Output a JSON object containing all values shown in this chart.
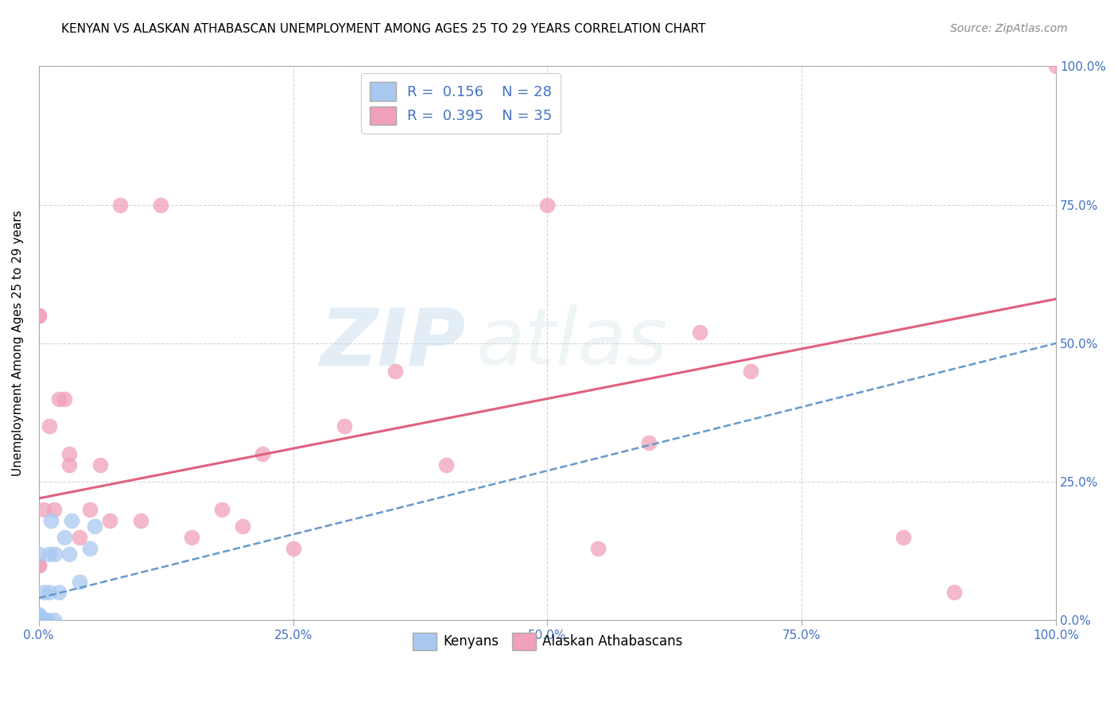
{
  "title": "KENYAN VS ALASKAN ATHABASCAN UNEMPLOYMENT AMONG AGES 25 TO 29 YEARS CORRELATION CHART",
  "source": "Source: ZipAtlas.com",
  "ylabel": "Unemployment Among Ages 25 to 29 years",
  "xlim": [
    0,
    1.0
  ],
  "ylim": [
    0,
    1.0
  ],
  "xtick_vals": [
    0,
    0.25,
    0.5,
    0.75,
    1.0
  ],
  "ytick_vals": [
    0,
    0.25,
    0.5,
    0.75,
    1.0
  ],
  "watermark_zip": "ZIP",
  "watermark_atlas": "atlas",
  "legend_r1": "R = 0.156",
  "legend_n1": "N = 28",
  "legend_r2": "R = 0.395",
  "legend_n2": "N = 35",
  "kenyan_color": "#a8c8f0",
  "athabascan_color": "#f0a0b8",
  "kenyan_x": [
    0.0,
    0.0,
    0.0,
    0.0,
    0.0,
    0.0,
    0.0,
    0.0,
    0.0,
    0.0,
    0.0,
    0.0,
    0.004,
    0.005,
    0.008,
    0.009,
    0.01,
    0.01,
    0.012,
    0.015,
    0.016,
    0.02,
    0.025,
    0.03,
    0.032,
    0.04,
    0.05,
    0.055
  ],
  "kenyan_y": [
    0.0,
    0.0,
    0.0,
    0.0,
    0.0,
    0.0,
    0.002,
    0.003,
    0.005,
    0.008,
    0.01,
    0.12,
    0.0,
    0.05,
    0.0,
    0.0,
    0.05,
    0.12,
    0.18,
    0.0,
    0.12,
    0.05,
    0.15,
    0.12,
    0.18,
    0.07,
    0.13,
    0.17
  ],
  "athabascan_x": [
    0.0,
    0.0,
    0.0,
    0.0,
    0.0,
    0.005,
    0.01,
    0.015,
    0.02,
    0.025,
    0.03,
    0.03,
    0.04,
    0.05,
    0.06,
    0.07,
    0.08,
    0.1,
    0.12,
    0.15,
    0.18,
    0.2,
    0.22,
    0.25,
    0.3,
    0.35,
    0.4,
    0.5,
    0.55,
    0.6,
    0.65,
    0.7,
    0.85,
    0.9,
    1.0
  ],
  "athabascan_y": [
    0.55,
    0.55,
    0.1,
    0.1,
    0.0,
    0.2,
    0.35,
    0.2,
    0.4,
    0.4,
    0.3,
    0.28,
    0.15,
    0.2,
    0.28,
    0.18,
    0.75,
    0.18,
    0.75,
    0.15,
    0.2,
    0.17,
    0.3,
    0.13,
    0.35,
    0.45,
    0.28,
    0.75,
    0.13,
    0.32,
    0.52,
    0.45,
    0.15,
    0.05,
    1.0
  ],
  "kenyan_trend_x": [
    0.0,
    1.0
  ],
  "kenyan_trend_y": [
    0.04,
    0.5
  ],
  "athabascan_trend_x": [
    0.0,
    1.0
  ],
  "athabascan_trend_y": [
    0.22,
    0.58
  ],
  "kenyan_trend_color": "#6699cc",
  "athabascan_trend_color": "#e06080",
  "background_color": "#ffffff",
  "grid_color": "#cccccc",
  "title_fontsize": 11,
  "source_fontsize": 10,
  "axis_label_fontsize": 11,
  "tick_label_fontsize": 11,
  "marker_size": 200,
  "legend_fontsize": 13
}
